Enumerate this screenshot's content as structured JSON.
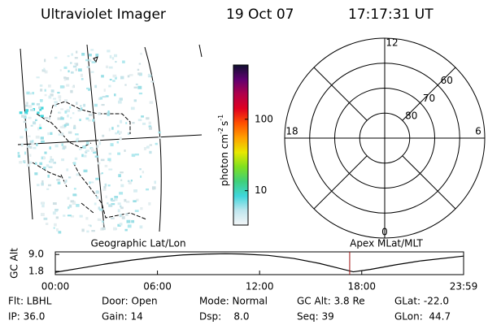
{
  "header": {
    "instrument": "Ultraviolet Imager",
    "date": "19 Oct 07",
    "time": "17:17:31 UT"
  },
  "map": {
    "label": "Geographic Lat/Lon"
  },
  "colorbar": {
    "type": "colorbar",
    "label": [
      "photon cm",
      "-2",
      "s",
      "-1"
    ],
    "log": true,
    "lim": [
      3.3,
      575
    ],
    "ticks": [
      10,
      100
    ],
    "colors": [
      "#f4f6f8",
      "#bfe6ee",
      "#3fd6dc",
      "#3fd07a",
      "#7fe020",
      "#e8e800",
      "#ffa000",
      "#ff5000",
      "#e00020",
      "#b0004a",
      "#600070",
      "#101030"
    ]
  },
  "polar": {
    "type": "polar",
    "label": "Apex MLat/MLT",
    "rlim": [
      90,
      50
    ],
    "rticks": [
      80,
      70,
      60
    ],
    "mlt": [
      "12",
      "6",
      "0",
      "18"
    ]
  },
  "chart_data": {
    "type": "line",
    "ylabel": "GC Alt",
    "x": [
      0,
      1.5,
      3,
      4.5,
      6,
      7.5,
      9,
      10,
      11,
      12.5,
      14,
      15.5,
      16.5,
      17.5,
      18.5,
      20,
      21.5,
      23.983
    ],
    "values": [
      1.4,
      3.2,
      5.0,
      6.6,
      7.9,
      8.8,
      9.2,
      9.3,
      9.2,
      8.6,
      7.3,
      5.2,
      3.4,
      1.6,
      2.6,
      4.6,
      6.3,
      8.3
    ],
    "color": "#000000",
    "xlim": [
      0,
      23.983
    ],
    "xticks": [
      {
        "value": 0,
        "label": "00:00"
      },
      {
        "value": 6,
        "label": "06:00"
      },
      {
        "value": 12,
        "label": "12:00"
      },
      {
        "value": 18,
        "label": "18:00"
      },
      {
        "value": 23.983,
        "label": "23:59"
      }
    ],
    "ylim": [
      0.4,
      10.1
    ],
    "yticks": [
      {
        "value": 9,
        "label": "9.0"
      },
      {
        "value": 1.8,
        "label": "1.8"
      }
    ],
    "marker": {
      "x": 17.292,
      "color": "#a01010"
    }
  },
  "info": {
    "rows": [
      [
        "Flt: LBHL",
        "Door: Open",
        "Mode: Normal",
        "GC Alt: 3.8 Re",
        "GLat: -22.0"
      ],
      [
        "IP: 36.0",
        "Gain: 14",
        "Dsp:    8.0",
        "Seq: 39",
        "GLon:  44.7"
      ]
    ]
  }
}
